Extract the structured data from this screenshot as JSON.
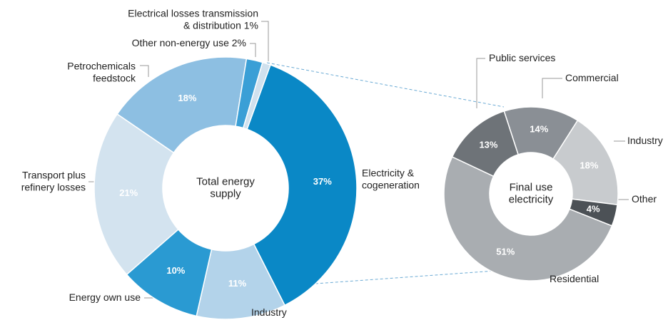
{
  "chart_data": [
    {
      "type": "pie",
      "center_label": "Total energy\nsupply",
      "start_angle": 20,
      "categories": [
        "Electricity &\ncogeneration",
        "Industry",
        "Energy own use",
        "Transport plus\nrefinery losses",
        "Petrochemicals\nfeedstock",
        "Other non-energy use 2%",
        "Electrical losses transmission\n& distribution 1%"
      ],
      "values": [
        37,
        11,
        10,
        21,
        18,
        2,
        1
      ],
      "value_labels": [
        "37%",
        "11%",
        "10%",
        "21%",
        "18%",
        null,
        null
      ],
      "colors": [
        "#0a88c6",
        "#b3d3ea",
        "#2a9ad2",
        "#d3e3ef",
        "#8dbfe2",
        "#3a9fd6",
        "#d0e1ee"
      ]
    },
    {
      "type": "pie",
      "center_label": "Final use\nelectricity",
      "start_angle": -18,
      "categories": [
        "Commercial",
        "Industry",
        "Other",
        "Residential",
        "Public services"
      ],
      "values": [
        14,
        18,
        4,
        51,
        13
      ],
      "value_labels": [
        "14%",
        "18%",
        "4%",
        "51%",
        "13%"
      ],
      "colors": [
        "#8a8f95",
        "#c8cbce",
        "#4c5156",
        "#a9adb1",
        "#6e7378"
      ]
    }
  ]
}
